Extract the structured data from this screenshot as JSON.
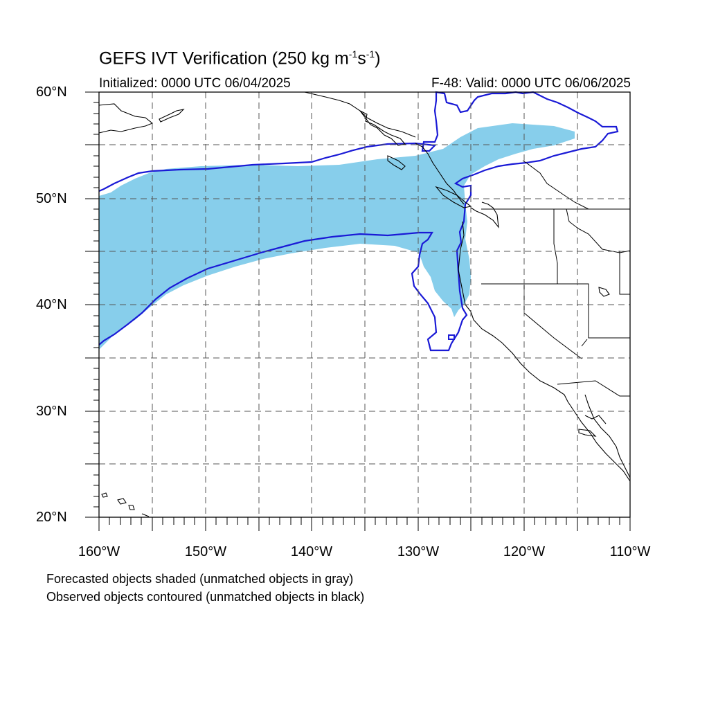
{
  "title": {
    "main": "GEFS IVT Verification (250 kg m",
    "sup1": "-1",
    "mid": "s",
    "sup2": "-1",
    "end": ")"
  },
  "subtitle": {
    "initialized": "Initialized: 0000 UTC 06/04/2025",
    "valid": "F-48: Valid: 0000 UTC 06/06/2025"
  },
  "lat_labels": [
    "60°N",
    "50°N",
    "40°N",
    "30°N",
    "20°N"
  ],
  "lon_labels": [
    "160°W",
    "150°W",
    "140°W",
    "130°W",
    "120°W",
    "110°W"
  ],
  "footer": {
    "line1": "Forecasted objects shaded (unmatched objects in gray)",
    "line2": "Observed objects contoured (unmatched objects in black)"
  },
  "map_extent": {
    "lon_min": -160,
    "lon_max": -110,
    "lat_min": 20,
    "lat_max": 60
  },
  "colors": {
    "forecast_fill": "#87ceeb",
    "observed_contour": "#1a1ad6",
    "coastline": "#000000",
    "grid": "#555555"
  }
}
